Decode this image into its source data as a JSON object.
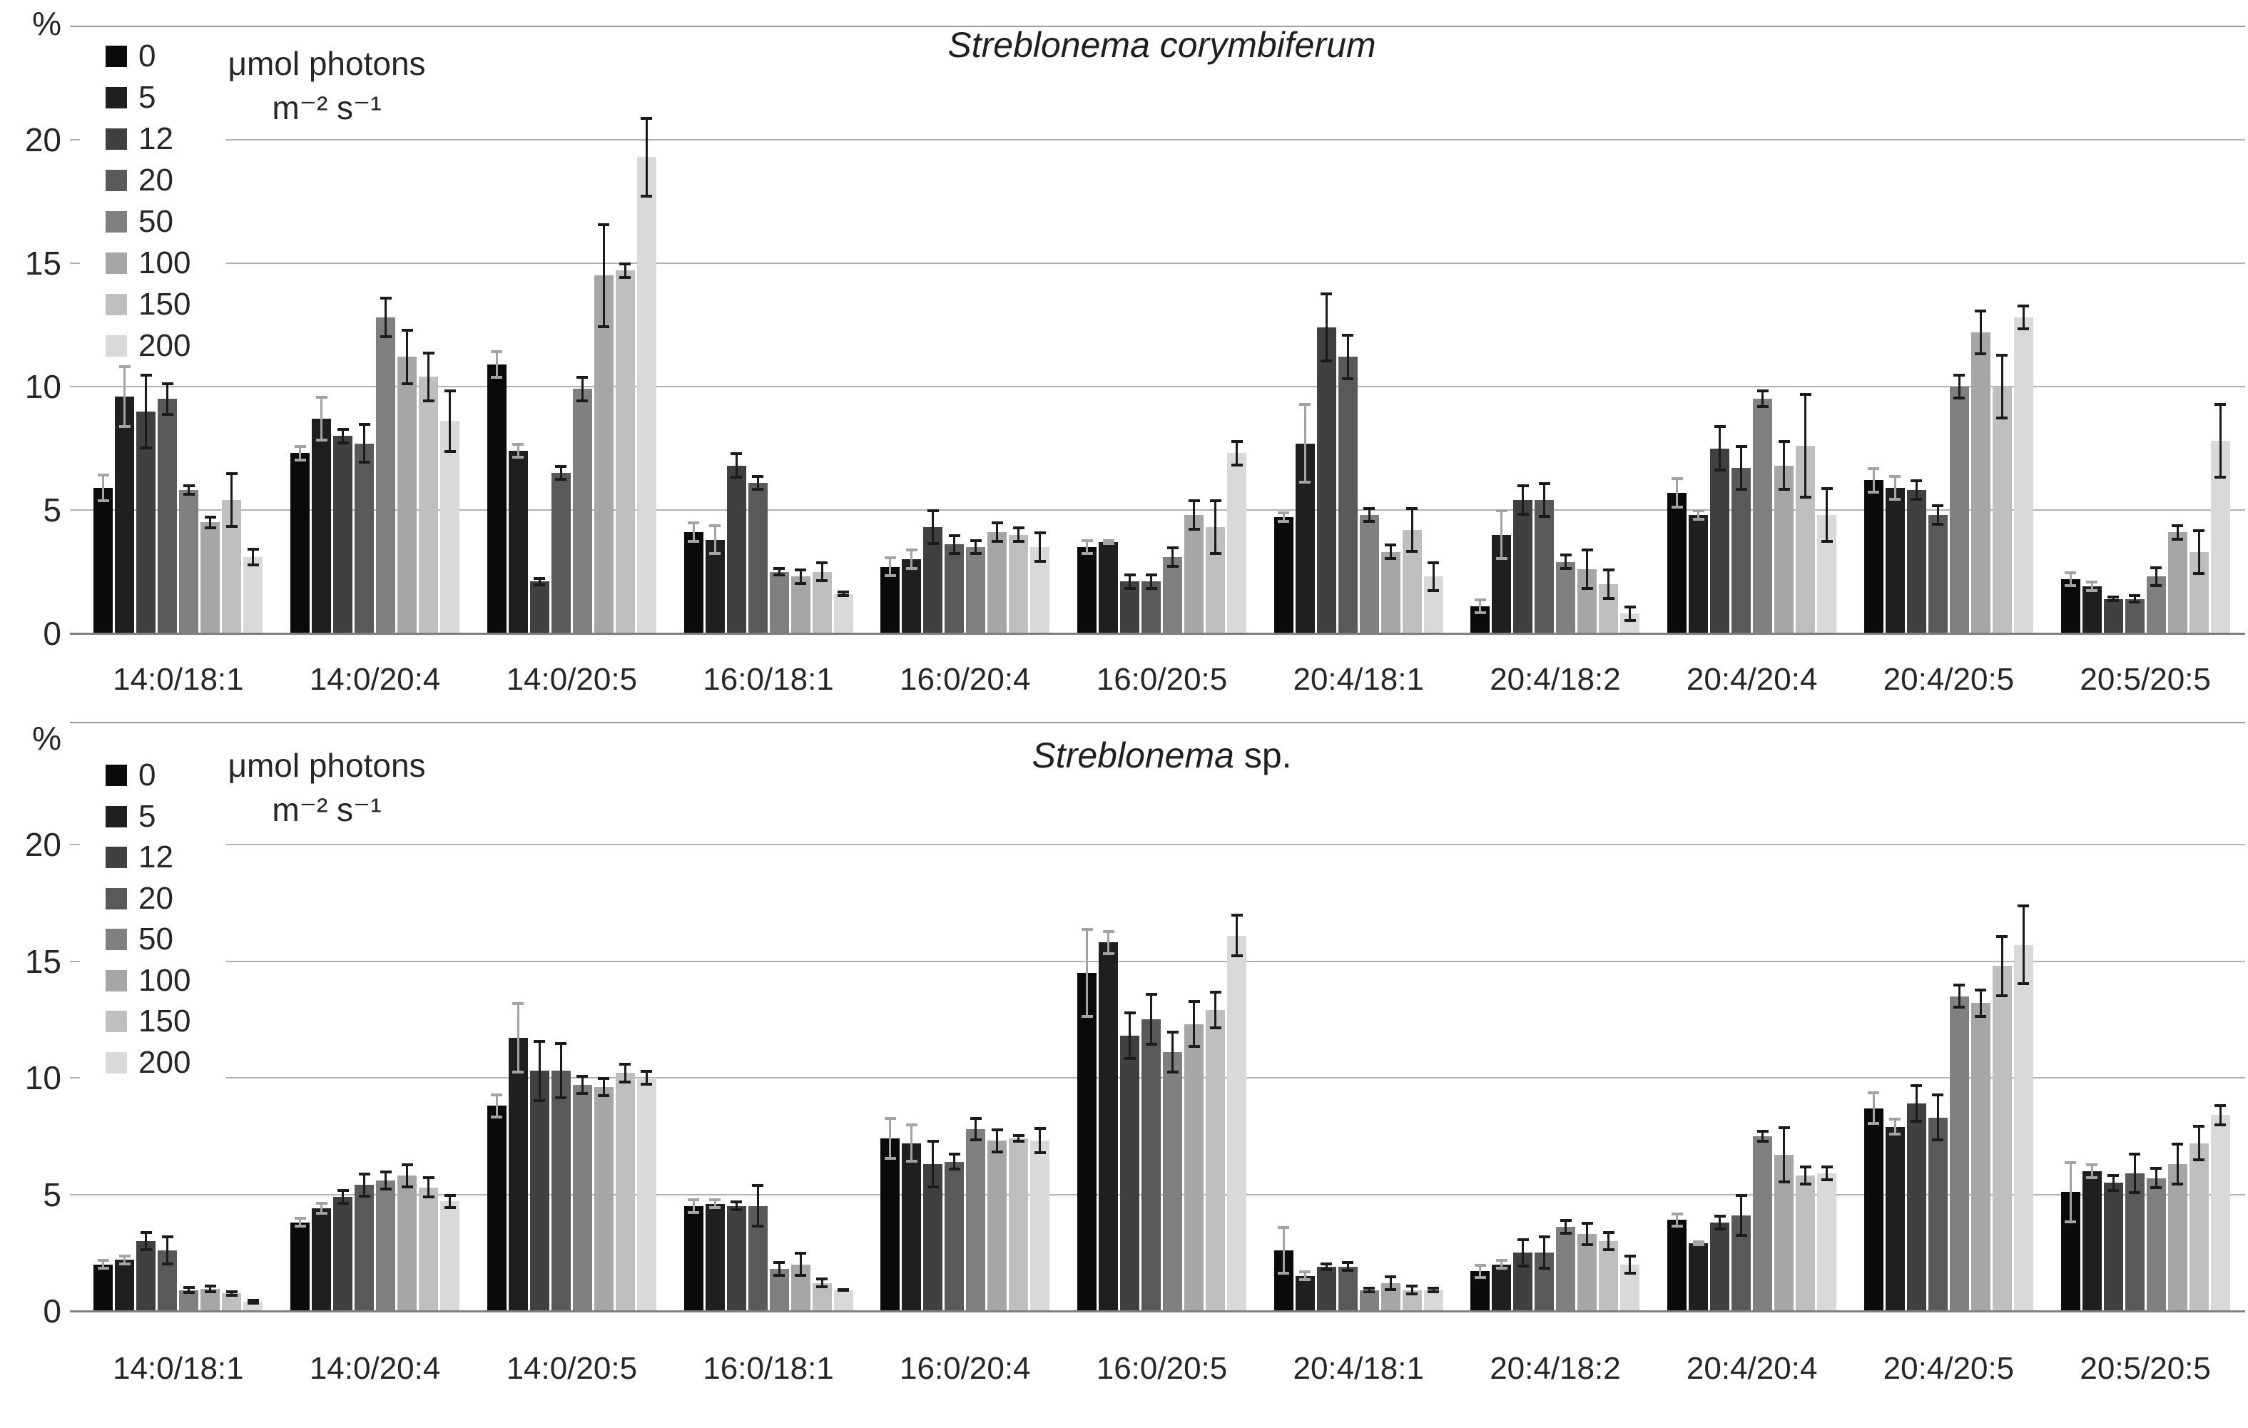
{
  "figure": {
    "background": "#ffffff",
    "axis_unit": "%",
    "light_levels_unit_line1": "μmol photons",
    "light_levels_unit_line2": "m⁻² s⁻¹"
  },
  "chart_data": [
    {
      "type": "bar",
      "title_italic": "Streblonema corymbiferum",
      "title_suffix": "",
      "ylabel": "%",
      "ylim": [
        0,
        20
      ],
      "yticks": [
        0,
        5,
        10,
        15,
        20
      ],
      "grid": true,
      "legend_position": "top-left",
      "legend_title_line1": "μmol photons",
      "legend_title_line2": "m⁻² s⁻¹",
      "legend_labels": [
        "0",
        "5",
        "12",
        "20",
        "50",
        "100",
        "150",
        "200"
      ],
      "legend_colors": [
        "#0a0a0a",
        "#1f1f1f",
        "#404040",
        "#595959",
        "#808080",
        "#a6a6a6",
        "#bfbfbf",
        "#d9d9d9"
      ],
      "categories": [
        "14:0/18:1",
        "14:0/20:4",
        "14:0/20:5",
        "16:0/18:1",
        "16:0/20:4",
        "16:0/20:5",
        "20:4/18:1",
        "20:4/18:2",
        "20:4/20:4",
        "20:4/20:5",
        "20:5/20:5"
      ],
      "series": [
        {
          "name": "0",
          "color": "#0a0a0a",
          "values": [
            5.9,
            7.3,
            10.9,
            4.1,
            2.7,
            3.5,
            4.7,
            1.1,
            5.7,
            6.2,
            2.2
          ],
          "errors": [
            0.55,
            0.3,
            0.55,
            0.4,
            0.4,
            0.3,
            0.2,
            0.3,
            0.6,
            0.5,
            0.3
          ]
        },
        {
          "name": "5",
          "color": "#1f1f1f",
          "values": [
            9.6,
            8.7,
            7.4,
            3.8,
            3.0,
            3.7,
            7.7,
            4.0,
            4.8,
            5.9,
            1.9
          ],
          "errors": [
            1.25,
            0.9,
            0.3,
            0.6,
            0.4,
            0.1,
            1.6,
            1.0,
            0.2,
            0.5,
            0.2
          ]
        },
        {
          "name": "12",
          "color": "#404040",
          "values": [
            9.0,
            8.0,
            2.1,
            6.8,
            4.3,
            2.1,
            12.4,
            5.4,
            7.5,
            5.8,
            1.4
          ],
          "errors": [
            1.5,
            0.3,
            0.15,
            0.5,
            0.7,
            0.3,
            1.4,
            0.6,
            0.9,
            0.4,
            0.1
          ]
        },
        {
          "name": "20",
          "color": "#595959",
          "values": [
            9.5,
            7.7,
            6.5,
            6.1,
            3.6,
            2.1,
            11.2,
            5.4,
            6.7,
            4.8,
            1.4
          ],
          "errors": [
            0.65,
            0.8,
            0.3,
            0.3,
            0.4,
            0.3,
            0.9,
            0.7,
            0.9,
            0.4,
            0.15
          ]
        },
        {
          "name": "50",
          "color": "#808080",
          "values": [
            5.8,
            12.8,
            9.9,
            2.5,
            3.5,
            3.1,
            4.8,
            2.9,
            9.5,
            10.0,
            2.3
          ],
          "errors": [
            0.2,
            0.8,
            0.5,
            0.15,
            0.3,
            0.4,
            0.3,
            0.3,
            0.35,
            0.5,
            0.4
          ]
        },
        {
          "name": "100",
          "color": "#a6a6a6",
          "values": [
            4.5,
            11.2,
            14.5,
            2.3,
            4.1,
            4.8,
            3.3,
            2.6,
            6.8,
            12.2,
            4.1
          ],
          "errors": [
            0.25,
            1.1,
            2.1,
            0.3,
            0.4,
            0.6,
            0.3,
            0.8,
            1.0,
            0.9,
            0.3
          ]
        },
        {
          "name": "150",
          "color": "#bfbfbf",
          "values": [
            5.4,
            10.4,
            14.7,
            2.5,
            4.0,
            4.3,
            4.2,
            2.0,
            7.6,
            10.0,
            3.3
          ],
          "errors": [
            1.1,
            1.0,
            0.3,
            0.4,
            0.3,
            1.1,
            0.9,
            0.6,
            2.1,
            1.3,
            0.9
          ]
        },
        {
          "name": "200",
          "color": "#d9d9d9",
          "values": [
            3.1,
            8.6,
            19.3,
            1.6,
            3.5,
            7.3,
            2.3,
            0.8,
            4.8,
            12.8,
            7.8
          ],
          "errors": [
            0.35,
            1.25,
            1.6,
            0.1,
            0.6,
            0.5,
            0.6,
            0.3,
            1.1,
            0.5,
            1.5
          ]
        }
      ]
    },
    {
      "type": "bar",
      "title_italic": "Streblonema",
      "title_suffix": " sp.",
      "ylabel": "%",
      "ylim": [
        0,
        20
      ],
      "yticks": [
        0,
        5,
        10,
        15,
        20
      ],
      "grid": true,
      "legend_position": "top-left",
      "legend_title_line1": "μmol photons",
      "legend_title_line2": "m⁻² s⁻¹",
      "legend_labels": [
        "0",
        "5",
        "12",
        "20",
        "50",
        "100",
        "150",
        "200"
      ],
      "legend_colors": [
        "#0a0a0a",
        "#1f1f1f",
        "#404040",
        "#595959",
        "#808080",
        "#a6a6a6",
        "#bfbfbf",
        "#d9d9d9"
      ],
      "categories": [
        "14:0/18:1",
        "14:0/20:4",
        "14:0/20:5",
        "16:0/18:1",
        "16:0/20:4",
        "16:0/20:5",
        "20:4/18:1",
        "20:4/18:2",
        "20:4/20:4",
        "20:4/20:5",
        "20:5/20:5"
      ],
      "series": [
        {
          "name": "0",
          "color": "#0a0a0a",
          "values": [
            2.0,
            3.8,
            8.8,
            4.5,
            7.4,
            14.5,
            2.6,
            1.7,
            3.9,
            8.7,
            5.1
          ],
          "errors": [
            0.2,
            0.2,
            0.5,
            0.3,
            0.9,
            1.9,
            1.0,
            0.3,
            0.3,
            0.7,
            1.3
          ]
        },
        {
          "name": "5",
          "color": "#1f1f1f",
          "values": [
            2.2,
            4.4,
            11.7,
            4.6,
            7.2,
            15.8,
            1.5,
            2.0,
            2.9,
            7.9,
            6.0
          ],
          "errors": [
            0.2,
            0.25,
            1.5,
            0.2,
            0.8,
            0.5,
            0.2,
            0.2,
            0.1,
            0.35,
            0.3
          ]
        },
        {
          "name": "12",
          "color": "#404040",
          "values": [
            3.0,
            4.9,
            10.3,
            4.5,
            6.3,
            11.8,
            1.9,
            2.5,
            3.8,
            8.9,
            5.5
          ],
          "errors": [
            0.4,
            0.3,
            1.3,
            0.2,
            1.0,
            1.0,
            0.15,
            0.6,
            0.3,
            0.8,
            0.35
          ]
        },
        {
          "name": "20",
          "color": "#595959",
          "values": [
            2.6,
            5.4,
            10.3,
            4.5,
            6.4,
            12.5,
            1.9,
            2.5,
            4.1,
            8.3,
            5.9
          ],
          "errors": [
            0.6,
            0.5,
            1.2,
            0.9,
            0.35,
            1.1,
            0.2,
            0.7,
            0.9,
            1.0,
            0.85
          ]
        },
        {
          "name": "50",
          "color": "#808080",
          "values": [
            0.9,
            5.6,
            9.7,
            1.8,
            7.8,
            11.1,
            0.9,
            3.6,
            7.5,
            13.5,
            5.7
          ],
          "errors": [
            0.15,
            0.4,
            0.4,
            0.3,
            0.5,
            0.9,
            0.1,
            0.3,
            0.25,
            0.5,
            0.45
          ]
        },
        {
          "name": "100",
          "color": "#a6a6a6",
          "values": [
            0.95,
            5.8,
            9.6,
            2.0,
            7.3,
            12.3,
            1.2,
            3.3,
            6.7,
            13.2,
            6.3
          ],
          "errors": [
            0.15,
            0.5,
            0.4,
            0.5,
            0.5,
            1.0,
            0.3,
            0.5,
            1.2,
            0.6,
            0.9
          ]
        },
        {
          "name": "150",
          "color": "#bfbfbf",
          "values": [
            0.75,
            5.3,
            10.2,
            1.2,
            7.4,
            12.9,
            0.9,
            3.0,
            5.8,
            14.8,
            7.2
          ],
          "errors": [
            0.1,
            0.45,
            0.4,
            0.2,
            0.15,
            0.8,
            0.2,
            0.4,
            0.4,
            1.3,
            0.75
          ]
        },
        {
          "name": "200",
          "color": "#d9d9d9",
          "values": [
            0.4,
            4.7,
            10.0,
            0.9,
            7.3,
            16.1,
            0.9,
            2.0,
            5.9,
            15.7,
            8.4
          ],
          "errors": [
            0.1,
            0.3,
            0.3,
            0.05,
            0.55,
            0.9,
            0.1,
            0.4,
            0.3,
            1.7,
            0.45
          ]
        }
      ]
    }
  ]
}
